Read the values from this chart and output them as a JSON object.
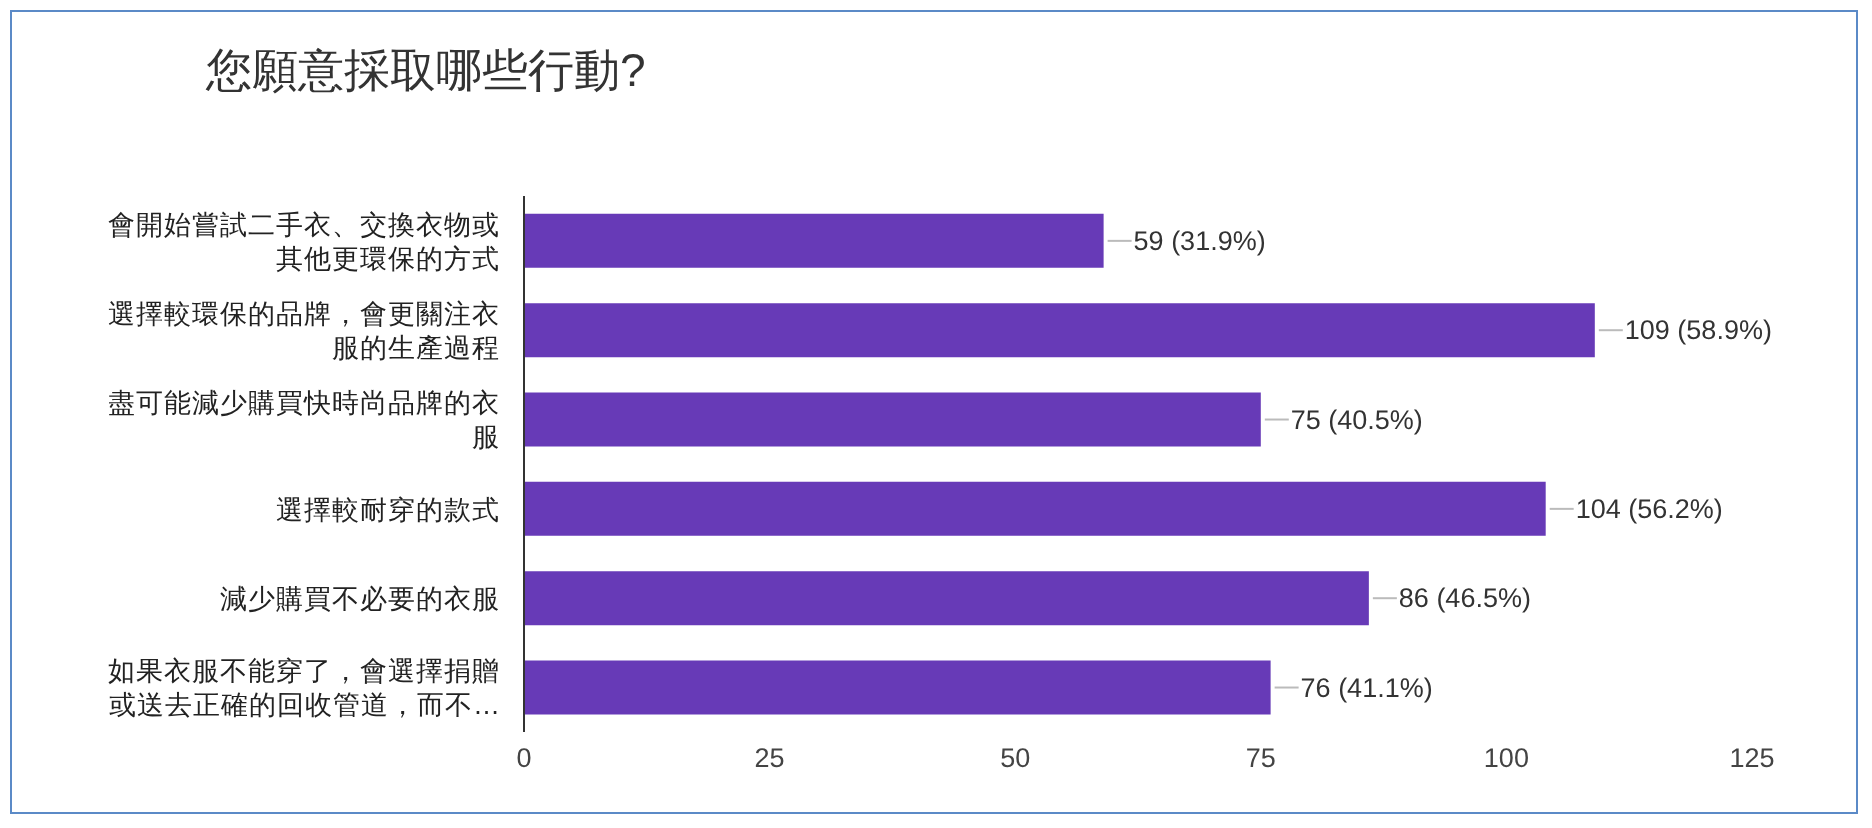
{
  "chart_data": {
    "type": "bar",
    "orientation": "horizontal",
    "title": "您願意採取哪些行動?",
    "categories": [
      "會開始嘗試二手衣、交換衣物或其他更環保的方式",
      "選擇較環保的品牌，會更關注衣服的生產過程",
      "盡可能減少購買快時尚品牌的衣服",
      "選擇較耐穿的款式",
      "減少購買不必要的衣服",
      "如果衣服不能穿了，會選擇捐贈或送去正確的回收管道，而不…"
    ],
    "values": [
      59,
      109,
      75,
      104,
      86,
      76
    ],
    "value_labels": [
      "59 (31.9%)",
      "109 (58.9%)",
      "75 (40.5%)",
      "104 (56.2%)",
      "86 (46.5%)",
      "76 (41.1%)"
    ],
    "color": "#673ab7",
    "xlim": [
      0,
      125
    ],
    "xticks": [
      0,
      25,
      50,
      75,
      100,
      125
    ]
  }
}
